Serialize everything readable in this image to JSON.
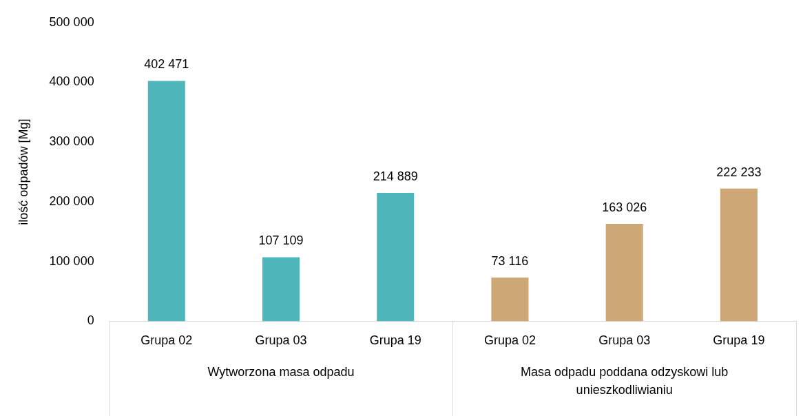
{
  "chart_data": {
    "type": "bar",
    "ylabel": "ilość odpadów [Mg]",
    "categories": [
      "Grupa 02",
      "Grupa 03",
      "Grupa 19",
      "Grupa 02",
      "Grupa 03",
      "Grupa 19"
    ],
    "values": [
      402471,
      107109,
      214889,
      73116,
      163026,
      222233
    ],
    "value_labels": [
      "402 471",
      "107 109",
      "214 889",
      "73 116",
      "163 026",
      "222 233"
    ],
    "colors": [
      "#4fb6bb",
      "#4fb6bb",
      "#4fb6bb",
      "#cda775",
      "#cda775",
      "#cda775"
    ],
    "annotations": [
      "Wytworzona masa odpadu",
      "Masa odpadu poddana odzyskowi lub unieszkodliwianiu"
    ],
    "ylim": [
      0,
      500000
    ],
    "yticks": [
      {
        "value": 0,
        "label": "0"
      },
      {
        "value": 100000,
        "label": "100 000"
      },
      {
        "value": 200000,
        "label": "200 000"
      },
      {
        "value": 300000,
        "label": "300 000"
      },
      {
        "value": 400000,
        "label": "400 000"
      },
      {
        "value": 500000,
        "label": "500 000"
      }
    ],
    "grid": false,
    "legend": false
  }
}
